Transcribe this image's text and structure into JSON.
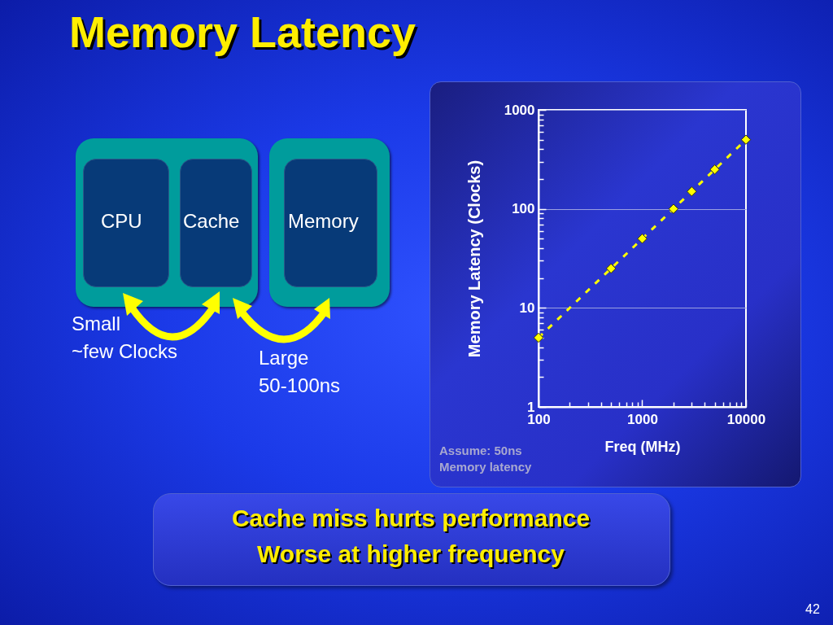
{
  "chart_data": {
    "type": "line",
    "title": "Memory Latency",
    "xlabel": "Freq (MHz)",
    "ylabel": "Memory Latency (Clocks)",
    "x": [
      100,
      500,
      1000,
      2000,
      3000,
      5000,
      10000
    ],
    "series": [
      {
        "color": "#ffff00",
        "values": [
          5,
          25,
          50,
          100,
          150,
          250,
          500
        ]
      }
    ],
    "log": "xy",
    "grid": "y",
    "marker": "diamond",
    "line_style": "dashed",
    "xlim": [
      100,
      10000
    ],
    "ylim": [
      1,
      1000
    ],
    "xticks": [
      100,
      {
        "value": 200,
        "label": null
      },
      {
        "value": 300,
        "label": null
      },
      {
        "value": 400,
        "label": null
      },
      {
        "value": 500,
        "label": null
      },
      {
        "value": 600,
        "label": null
      },
      {
        "value": 700,
        "label": null
      },
      {
        "value": 800,
        "label": null
      },
      {
        "value": 900,
        "label": null
      },
      1000,
      {
        "value": 2000,
        "label": null
      },
      {
        "value": 3000,
        "label": null
      },
      {
        "value": 4000,
        "label": null
      },
      {
        "value": 5000,
        "label": null
      },
      {
        "value": 6000,
        "label": null
      },
      {
        "value": 7000,
        "label": null
      },
      {
        "value": 8000,
        "label": null
      },
      {
        "value": 9000,
        "label": null
      },
      10000
    ],
    "yticks": [
      1,
      {
        "value": 2,
        "label": null
      },
      {
        "value": 3,
        "label": null
      },
      {
        "value": 4,
        "label": null
      },
      {
        "value": 5,
        "label": null
      },
      {
        "value": 6,
        "label": null
      },
      {
        "value": 7,
        "label": null
      },
      {
        "value": 8,
        "label": null
      },
      {
        "value": 9,
        "label": null
      },
      10,
      {
        "value": 20,
        "label": null
      },
      {
        "value": 30,
        "label": null
      },
      {
        "value": 40,
        "label": null
      },
      {
        "value": 50,
        "label": null
      },
      {
        "value": 60,
        "label": null
      },
      {
        "value": 70,
        "label": null
      },
      {
        "value": 80,
        "label": null
      },
      {
        "value": 90,
        "label": null
      },
      100,
      {
        "value": 200,
        "label": null
      },
      {
        "value": 300,
        "label": null
      },
      {
        "value": 400,
        "label": null
      },
      {
        "value": 500,
        "label": null
      },
      {
        "value": 600,
        "label": null
      },
      {
        "value": 700,
        "label": null
      },
      {
        "value": 800,
        "label": null
      },
      {
        "value": 900,
        "label": null
      },
      1000
    ],
    "annotations": [
      "CPU",
      "Cache",
      "Memory",
      "Small",
      "~few Clocks",
      "Large",
      "50-100ns",
      "Assume: 50ns",
      "Memory latency",
      "Cache miss hurts performance",
      "Worse at higher frequency",
      "42"
    ]
  }
}
